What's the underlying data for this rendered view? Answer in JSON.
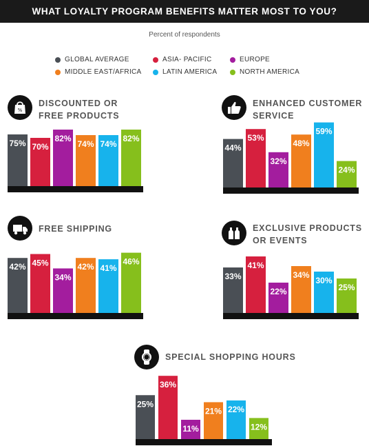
{
  "header": {
    "title": "WHAT LOYALTY PROGRAM BENEFITS MATTER MOST TO YOU?"
  },
  "subtitle": "Percent of respondents",
  "legend": [
    {
      "name": "GLOBAL AVERAGE",
      "color": "#4a4f55"
    },
    {
      "name": "ASIA- PACIFIC",
      "color": "#d6203e"
    },
    {
      "name": "EUROPE",
      "color": "#a31d9e"
    },
    {
      "name": "MIDDLE EAST/AFRICA",
      "color": "#f07f1e"
    },
    {
      "name": "LATIN AMERICA",
      "color": "#17b3ec"
    },
    {
      "name": "NORTH AMERICA",
      "color": "#86bf1c"
    }
  ],
  "panels": [
    {
      "title_lines": [
        "DISCOUNTED OR",
        "FREE PRODUCTS"
      ],
      "icon": "shopping-bag-icon"
    },
    {
      "title_lines": [
        "ENHANCED CUSTOMER",
        "SERVICE"
      ],
      "icon": "thumbs-up-icon"
    },
    {
      "title_lines": [
        "FREE SHIPPING"
      ],
      "icon": "delivery-truck-icon"
    },
    {
      "title_lines": [
        "EXCLUSIVE PRODUCTS",
        "OR EVENTS"
      ],
      "icon": "bottles-icon"
    },
    {
      "title_lines": [
        "SPECIAL SHOPPING HOURS"
      ],
      "icon": "watch-icon"
    }
  ],
  "chart_data": [
    {
      "type": "bar",
      "title": "DISCOUNTED OR FREE PRODUCTS",
      "categories": [
        "GLOBAL AVERAGE",
        "ASIA- PACIFIC",
        "EUROPE",
        "MIDDLE EAST/AFRICA",
        "LATIN AMERICA",
        "NORTH AMERICA"
      ],
      "values": [
        75,
        70,
        82,
        74,
        74,
        82
      ],
      "labels": [
        "75%",
        "70%",
        "82%",
        "74%",
        "74%",
        "82%"
      ],
      "ylim": [
        0,
        100
      ]
    },
    {
      "type": "bar",
      "title": "ENHANCED CUSTOMER SERVICE",
      "categories": [
        "GLOBAL AVERAGE",
        "ASIA- PACIFIC",
        "EUROPE",
        "MIDDLE EAST/AFRICA",
        "LATIN AMERICA",
        "NORTH AMERICA"
      ],
      "values": [
        44,
        53,
        32,
        48,
        59,
        24
      ],
      "labels": [
        "44%",
        "53%",
        "32%",
        "48%",
        "59%",
        "24%"
      ],
      "ylim": [
        0,
        100
      ]
    },
    {
      "type": "bar",
      "title": "FREE SHIPPING",
      "categories": [
        "GLOBAL AVERAGE",
        "ASIA- PACIFIC",
        "EUROPE",
        "MIDDLE EAST/AFRICA",
        "LATIN AMERICA",
        "NORTH AMERICA"
      ],
      "values": [
        42,
        45,
        34,
        42,
        41,
        46
      ],
      "labels": [
        "42%",
        "45%",
        "34%",
        "42%",
        "41%",
        "46%"
      ],
      "ylim": [
        0,
        100
      ]
    },
    {
      "type": "bar",
      "title": "EXCLUSIVE PRODUCTS OR EVENTS",
      "categories": [
        "GLOBAL AVERAGE",
        "ASIA- PACIFIC",
        "EUROPE",
        "MIDDLE EAST/AFRICA",
        "LATIN AMERICA",
        "NORTH AMERICA"
      ],
      "values": [
        33,
        41,
        22,
        34,
        30,
        25
      ],
      "labels": [
        "33%",
        "41%",
        "22%",
        "34%",
        "30%",
        "25%"
      ],
      "ylim": [
        0,
        100
      ]
    },
    {
      "type": "bar",
      "title": "SPECIAL SHOPPING HOURS",
      "categories": [
        "GLOBAL AVERAGE",
        "ASIA- PACIFIC",
        "EUROPE",
        "MIDDLE EAST/AFRICA",
        "LATIN AMERICA",
        "NORTH AMERICA"
      ],
      "values": [
        25,
        36,
        11,
        21,
        22,
        12
      ],
      "labels": [
        "25%",
        "36%",
        "11%",
        "21%",
        "22%",
        "12%"
      ],
      "ylim": [
        0,
        100
      ]
    }
  ]
}
